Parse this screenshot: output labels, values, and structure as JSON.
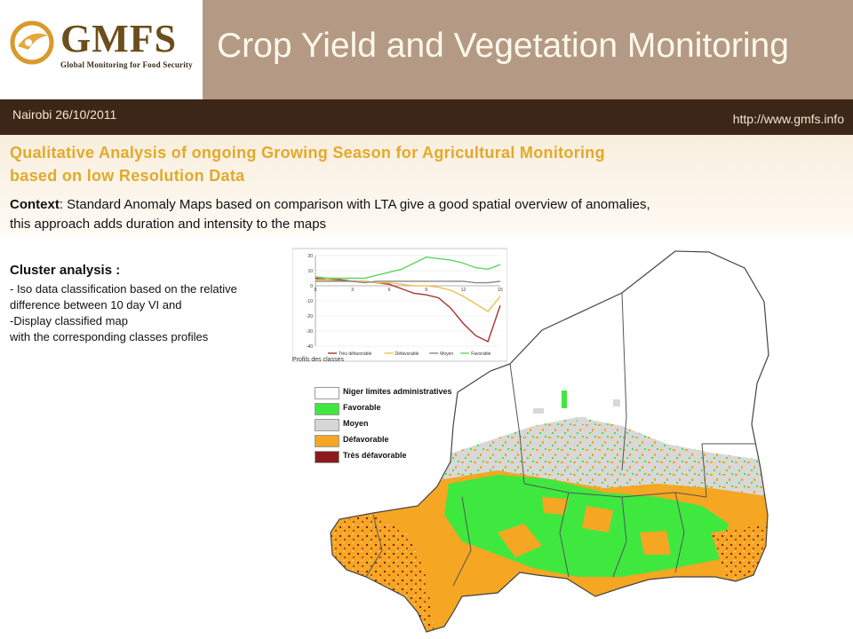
{
  "logo": {
    "wordmark": "GMFS",
    "subtitle": "Global Monitoring for Food Security"
  },
  "header": {
    "title": "Crop Yield and Vegetation Monitoring",
    "date_line": "Nairobi  26/10/2011",
    "url": "http://www.gmfs.info"
  },
  "section": {
    "heading_line1": "Qualitative Analysis of  ongoing Growing Season for Agricultural Monitoring",
    "heading_line2": "based on low Resolution Data",
    "context_label": "Context",
    "context_line1": ": Standard Anomaly Maps based on comparison with LTA give a good spatial overview of anomalies,",
    "context_line2": "this approach adds duration and intensity to the maps"
  },
  "cluster": {
    "title": "Cluster analysis :",
    "lines": [
      "-  Iso data classification based on the relative",
      "difference between  10 day VI and",
      "-Display classified map",
      "with the corresponding classes profiles"
    ]
  },
  "chart_data": {
    "type": "line",
    "title": "",
    "caption": "Profils des classes",
    "x": [
      0,
      1,
      2,
      3,
      4,
      5,
      6,
      7,
      8,
      9,
      10,
      11,
      12,
      13,
      14,
      15
    ],
    "x_ticks": [
      "0",
      "3",
      "6",
      "9",
      "12",
      "15"
    ],
    "xlim": [
      0,
      15
    ],
    "ylim": [
      -40,
      20
    ],
    "y_ticks": [
      "20",
      "10",
      "0",
      "-10",
      "-20",
      "-30",
      "-40"
    ],
    "grid": true,
    "legend_position": "bottom",
    "series": [
      {
        "name": "Très défavorable",
        "color": "#a8322a",
        "values": [
          5,
          4,
          4,
          3,
          3,
          2,
          1,
          -2,
          -5,
          -6,
          -8,
          -15,
          -25,
          -33,
          -37,
          -13
        ]
      },
      {
        "name": "Défavorable",
        "color": "#f0c050",
        "values": [
          4,
          4,
          3,
          3,
          3,
          2,
          2,
          1,
          0,
          0,
          -1,
          -3,
          -7,
          -12,
          -17,
          -7
        ]
      },
      {
        "name": "Moyen",
        "color": "#888888",
        "values": [
          3,
          3,
          3,
          3,
          2,
          3,
          3,
          3,
          3,
          3,
          3,
          3,
          3,
          2,
          2,
          3
        ]
      },
      {
        "name": "Favorable",
        "color": "#5dd65d",
        "values": [
          6,
          5,
          5,
          5,
          5,
          7,
          9,
          11,
          15,
          19,
          18,
          17,
          15,
          12,
          11,
          14
        ]
      }
    ]
  },
  "legend": {
    "items": [
      {
        "label": "Niger limites administratives",
        "color": "#ffffff"
      },
      {
        "label": "Favorable",
        "color": "#3fe83f"
      },
      {
        "label": "Moyen",
        "color": "#d6d6d6"
      },
      {
        "label": "Défavorable",
        "color": "#f5a623"
      },
      {
        "label": "Très défavorable",
        "color": "#8b1a1a"
      }
    ]
  }
}
